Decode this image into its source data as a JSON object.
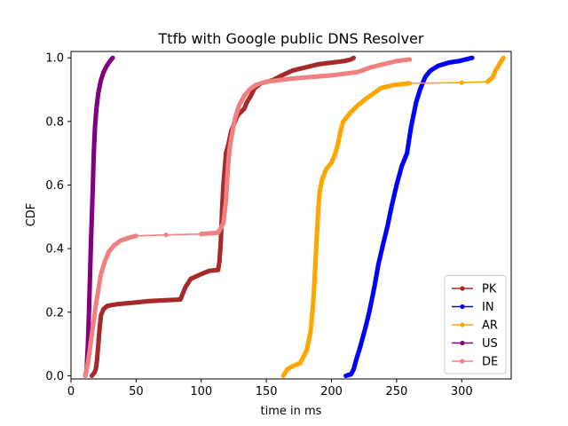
{
  "chart_data": {
    "type": "line",
    "title": "Ttfb with Google public DNS Resolver",
    "xlabel": "time in ms",
    "ylabel": "CDF",
    "xlim": [
      0,
      338
    ],
    "ylim": [
      -0.01,
      1.02
    ],
    "xticks": [
      0,
      50,
      100,
      150,
      200,
      250,
      300
    ],
    "yticks": [
      0.0,
      0.2,
      0.4,
      0.6,
      0.8,
      1.0
    ],
    "ytick_labels": [
      "0.0",
      "0.2",
      "0.4",
      "0.6",
      "0.8",
      "1.0"
    ],
    "grid": false,
    "legend_position": "lower right",
    "series": [
      {
        "name": "PK",
        "color": "#a52a2a",
        "points": [
          [
            16,
            0.0
          ],
          [
            18,
            0.01
          ],
          [
            19,
            0.02
          ],
          [
            20,
            0.05
          ],
          [
            21,
            0.1
          ],
          [
            22,
            0.15
          ],
          [
            23,
            0.19
          ],
          [
            25,
            0.21
          ],
          [
            28,
            0.22
          ],
          [
            35,
            0.225
          ],
          [
            48,
            0.23
          ],
          [
            60,
            0.235
          ],
          [
            84,
            0.24
          ],
          [
            86,
            0.26
          ],
          [
            88,
            0.28
          ],
          [
            92,
            0.305
          ],
          [
            100,
            0.32
          ],
          [
            106,
            0.33
          ],
          [
            113,
            0.333
          ],
          [
            114,
            0.36
          ],
          [
            115,
            0.42
          ],
          [
            116,
            0.52
          ],
          [
            117,
            0.6
          ],
          [
            118,
            0.65
          ],
          [
            119,
            0.7
          ],
          [
            121,
            0.73
          ],
          [
            123,
            0.77
          ],
          [
            126,
            0.8
          ],
          [
            128,
            0.82
          ],
          [
            133,
            0.84
          ],
          [
            135,
            0.86
          ],
          [
            138,
            0.88
          ],
          [
            141,
            0.905
          ],
          [
            146,
            0.92
          ],
          [
            155,
            0.93
          ],
          [
            162,
            0.945
          ],
          [
            170,
            0.96
          ],
          [
            180,
            0.97
          ],
          [
            190,
            0.98
          ],
          [
            200,
            0.985
          ],
          [
            210,
            0.99
          ],
          [
            215,
            0.995
          ],
          [
            217,
            1.0
          ]
        ]
      },
      {
        "name": "IN",
        "color": "#0000ff",
        "points": [
          [
            211,
            0.0
          ],
          [
            215,
            0.005
          ],
          [
            217,
            0.02
          ],
          [
            219,
            0.05
          ],
          [
            222,
            0.09
          ],
          [
            226,
            0.15
          ],
          [
            229,
            0.2
          ],
          [
            233,
            0.28
          ],
          [
            236,
            0.35
          ],
          [
            240,
            0.42
          ],
          [
            243,
            0.47
          ],
          [
            246,
            0.53
          ],
          [
            250,
            0.6
          ],
          [
            254,
            0.66
          ],
          [
            258,
            0.7
          ],
          [
            261,
            0.78
          ],
          [
            263,
            0.82
          ],
          [
            265,
            0.86
          ],
          [
            268,
            0.9
          ],
          [
            272,
            0.94
          ],
          [
            276,
            0.96
          ],
          [
            282,
            0.975
          ],
          [
            290,
            0.985
          ],
          [
            298,
            0.99
          ],
          [
            303,
            0.995
          ],
          [
            308,
            1.0
          ]
        ]
      },
      {
        "name": "AR",
        "color": "#ffa500",
        "points": [
          [
            163,
            0.0
          ],
          [
            166,
            0.02
          ],
          [
            170,
            0.03
          ],
          [
            176,
            0.04
          ],
          [
            181,
            0.08
          ],
          [
            184,
            0.14
          ],
          [
            186,
            0.23
          ],
          [
            187,
            0.3
          ],
          [
            188,
            0.38
          ],
          [
            189,
            0.46
          ],
          [
            190,
            0.53
          ],
          [
            191,
            0.58
          ],
          [
            193,
            0.62
          ],
          [
            196,
            0.65
          ],
          [
            200,
            0.67
          ],
          [
            203,
            0.7
          ],
          [
            205,
            0.73
          ],
          [
            207,
            0.77
          ],
          [
            209,
            0.8
          ],
          [
            215,
            0.83
          ],
          [
            220,
            0.85
          ],
          [
            226,
            0.87
          ],
          [
            233,
            0.89
          ],
          [
            238,
            0.905
          ],
          [
            248,
            0.915
          ],
          [
            260,
            0.92
          ],
          [
            300,
            0.922
          ],
          [
            320,
            0.925
          ],
          [
            324,
            0.94
          ],
          [
            326,
            0.96
          ],
          [
            329,
            0.98
          ],
          [
            332,
            1.0
          ]
        ]
      },
      {
        "name": "US",
        "color": "#800080",
        "points": [
          [
            11,
            0.0
          ],
          [
            12,
            0.02
          ],
          [
            13,
            0.1
          ],
          [
            13.8,
            0.2
          ],
          [
            14.5,
            0.3
          ],
          [
            15.2,
            0.4
          ],
          [
            16,
            0.5
          ],
          [
            16.8,
            0.6
          ],
          [
            17.5,
            0.7
          ],
          [
            18.4,
            0.78
          ],
          [
            19.5,
            0.84
          ],
          [
            21,
            0.89
          ],
          [
            23,
            0.93
          ],
          [
            25,
            0.955
          ],
          [
            27.5,
            0.975
          ],
          [
            30,
            0.99
          ],
          [
            32,
            1.0
          ]
        ]
      },
      {
        "name": "DE",
        "color": "#f08080",
        "points": [
          [
            11,
            0.0
          ],
          [
            13,
            0.04
          ],
          [
            15,
            0.1
          ],
          [
            17,
            0.16
          ],
          [
            19,
            0.22
          ],
          [
            21,
            0.27
          ],
          [
            23,
            0.32
          ],
          [
            26,
            0.36
          ],
          [
            29,
            0.39
          ],
          [
            33,
            0.41
          ],
          [
            38,
            0.425
          ],
          [
            45,
            0.435
          ],
          [
            50,
            0.44
          ],
          [
            73,
            0.443
          ],
          [
            100,
            0.446
          ],
          [
            113,
            0.45
          ],
          [
            117,
            0.48
          ],
          [
            119,
            0.55
          ],
          [
            120,
            0.62
          ],
          [
            121,
            0.68
          ],
          [
            122,
            0.72
          ],
          [
            124,
            0.77
          ],
          [
            126,
            0.81
          ],
          [
            129,
            0.85
          ],
          [
            133,
            0.88
          ],
          [
            137,
            0.9
          ],
          [
            142,
            0.915
          ],
          [
            150,
            0.925
          ],
          [
            170,
            0.935
          ],
          [
            200,
            0.945
          ],
          [
            220,
            0.955
          ],
          [
            230,
            0.97
          ],
          [
            240,
            0.98
          ],
          [
            250,
            0.99
          ],
          [
            260,
            0.995
          ]
        ]
      }
    ]
  }
}
